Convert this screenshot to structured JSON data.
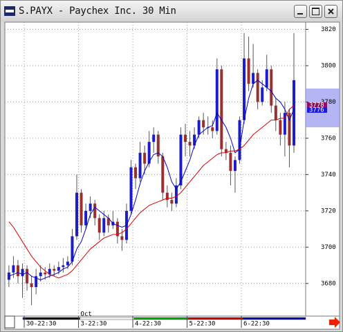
{
  "window": {
    "title": "S.PAYX - Paychex Inc. 30 Min"
  },
  "chart_data": {
    "type": "candlestick",
    "month_label": "Oct",
    "open": [
      3682,
      3686,
      3690,
      3684,
      3688,
      3680,
      3678,
      3684,
      3686,
      3685,
      3688,
      3687,
      3689,
      3690,
      3692,
      3706,
      3730,
      3712,
      3720,
      3724,
      3716,
      3708,
      3716,
      3712,
      3714,
      3706,
      3704,
      3720,
      3744,
      3738,
      3752,
      3746,
      3758,
      3762,
      3750,
      3730,
      3726,
      3724,
      3734,
      3762,
      3758,
      3756,
      3762,
      3770,
      3766,
      3766,
      3764,
      3798,
      3754,
      3752,
      3742,
      3748,
      3770,
      3804,
      3790,
      3796,
      3780,
      3788,
      3798,
      3778,
      3770,
      3762,
      3774,
      3756
    ],
    "high": [
      3690,
      3695,
      3693,
      3691,
      3690,
      3684,
      3688,
      3690,
      3689,
      3691,
      3690,
      3692,
      3694,
      3695,
      3710,
      3740,
      3732,
      3724,
      3728,
      3726,
      3718,
      3720,
      3718,
      3720,
      3716,
      3710,
      3724,
      3748,
      3746,
      3758,
      3756,
      3764,
      3766,
      3764,
      3752,
      3734,
      3730,
      3738,
      3766,
      3768,
      3764,
      3766,
      3772,
      3774,
      3772,
      3770,
      3804,
      3800,
      3758,
      3756,
      3750,
      3772,
      3818,
      3816,
      3812,
      3798,
      3792,
      3806,
      3800,
      3782,
      3774,
      3780,
      3776,
      3818
    ],
    "low": [
      3678,
      3683,
      3680,
      3672,
      3676,
      3668,
      3674,
      3681,
      3682,
      3683,
      3684,
      3685,
      3686,
      3688,
      3690,
      3704,
      3708,
      3710,
      3716,
      3712,
      3704,
      3706,
      3708,
      3710,
      3702,
      3698,
      3702,
      3718,
      3732,
      3736,
      3740,
      3744,
      3752,
      3746,
      3726,
      3722,
      3720,
      3722,
      3732,
      3750,
      3750,
      3754,
      3760,
      3762,
      3762,
      3760,
      3762,
      3750,
      3748,
      3734,
      3730,
      3746,
      3768,
      3786,
      3788,
      3776,
      3778,
      3786,
      3774,
      3764,
      3756,
      3750,
      3744,
      3752
    ],
    "close": [
      3686,
      3690,
      3684,
      3688,
      3680,
      3678,
      3684,
      3686,
      3685,
      3688,
      3687,
      3689,
      3690,
      3692,
      3706,
      3730,
      3712,
      3720,
      3724,
      3716,
      3708,
      3716,
      3712,
      3714,
      3706,
      3704,
      3720,
      3744,
      3738,
      3752,
      3746,
      3758,
      3762,
      3750,
      3730,
      3726,
      3724,
      3734,
      3762,
      3758,
      3756,
      3762,
      3770,
      3766,
      3766,
      3764,
      3798,
      3754,
      3752,
      3742,
      3748,
      3770,
      3804,
      3790,
      3796,
      3780,
      3788,
      3798,
      3778,
      3770,
      3762,
      3774,
      3756,
      3792
    ],
    "up_color": "#1c1cc8",
    "down_color": "#9a2f2f",
    "series": [
      {
        "color": "#0000cc",
        "values": [
          3684,
          3685,
          3686,
          3685,
          3686,
          3684,
          3683,
          3682,
          3683,
          3684,
          3685,
          3686,
          3688,
          3689,
          3692,
          3699,
          3703,
          3710,
          3718,
          3722,
          3720,
          3718,
          3716,
          3713,
          3712,
          3711,
          3712,
          3718,
          3726,
          3735,
          3742,
          3747,
          3751,
          3752,
          3750,
          3744,
          3736,
          3732,
          3736,
          3742,
          3748,
          3756,
          3762,
          3764,
          3766,
          3767,
          3774,
          3770,
          3766,
          3760,
          3752,
          3754,
          3770,
          3782,
          3790,
          3792,
          3790,
          3788,
          3786,
          3782,
          3780,
          3776,
          3770,
          3776
        ]
      },
      {
        "color": "#dd0000",
        "values": [
          3714,
          3711,
          3707,
          3703,
          3699,
          3695,
          3692,
          3689,
          3687,
          3685,
          3684,
          3683,
          3684,
          3685,
          3687,
          3690,
          3693,
          3696,
          3699,
          3701,
          3703,
          3705,
          3706,
          3707,
          3707,
          3708,
          3710,
          3713,
          3716,
          3719,
          3721,
          3723,
          3724,
          3725,
          3726,
          3727,
          3727,
          3728,
          3730,
          3733,
          3736,
          3739,
          3742,
          3745,
          3747,
          3749,
          3751,
          3752,
          3752,
          3753,
          3753,
          3754,
          3756,
          3759,
          3762,
          3764,
          3766,
          3768,
          3770,
          3770,
          3771,
          3771,
          3776,
          3778
        ]
      }
    ],
    "ylim": [
      3662,
      3824
    ],
    "yticks": [
      3680,
      3700,
      3720,
      3740,
      3760,
      3780,
      3800,
      3820
    ],
    "xlim": [
      -0.9,
      65.6
    ],
    "xticks": [
      {
        "value": 4,
        "label": "30-22:30"
      },
      {
        "value": 16,
        "label": "3-22:30"
      },
      {
        "value": 28,
        "label": "4-22:30"
      },
      {
        "value": 40,
        "label": "5-22:30"
      },
      {
        "value": 52,
        "label": "6-22:30"
      }
    ],
    "grid": true
  }
}
